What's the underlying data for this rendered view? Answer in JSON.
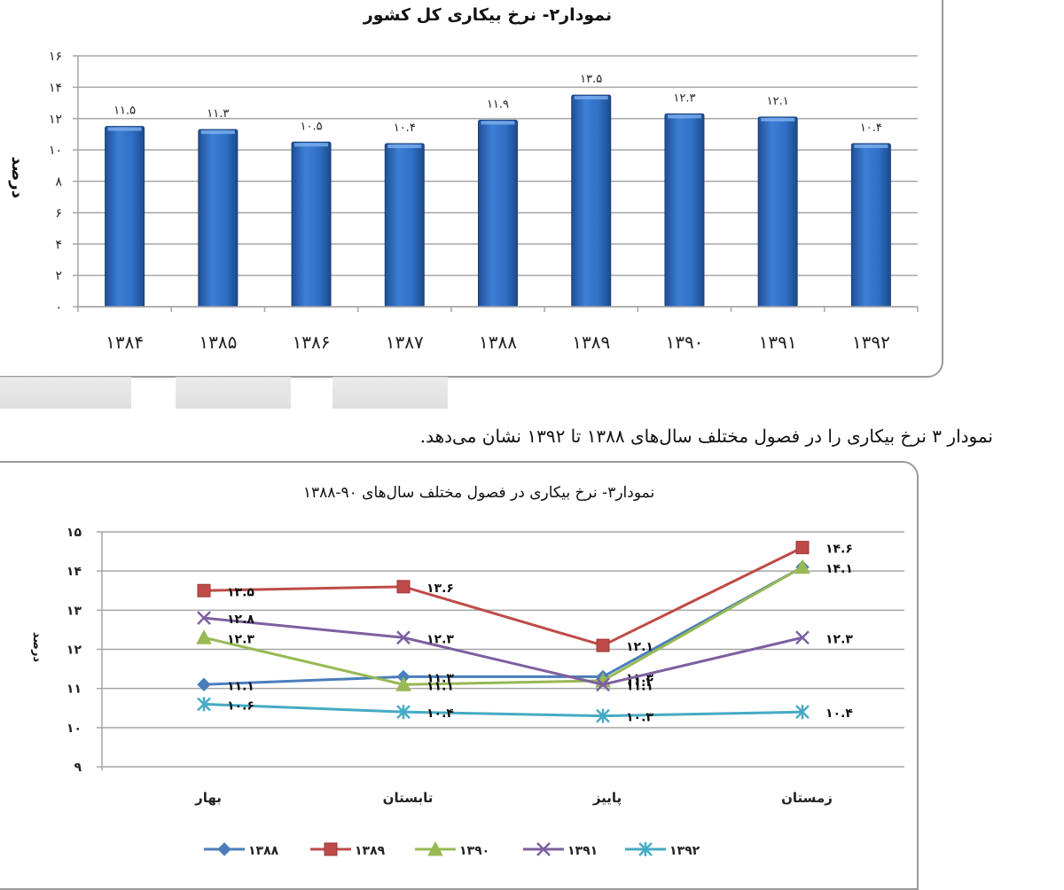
{
  "chart_data": [
    {
      "type": "bar",
      "title": "نمودار۲- نرخ بیکاری کل کشور",
      "xlabel": "",
      "ylabel": "درصد",
      "categories": [
        "۱۳۸۴",
        "۱۳۸۵",
        "۱۳۸۶",
        "۱۳۸۷",
        "۱۳۸۸",
        "۱۳۸۹",
        "۱۳۹۰",
        "۱۳۹۱",
        "۱۳۹۲"
      ],
      "values": [
        11.5,
        11.3,
        10.5,
        10.4,
        11.9,
        13.5,
        12.3,
        12.1,
        10.4
      ],
      "value_labels": [
        "۱۱.۵",
        "۱۱.۳",
        "۱۰.۵",
        "۱۰.۴",
        "۱۱.۹",
        "۱۳.۵",
        "۱۲.۳",
        "۱۲.۱",
        "۱۰.۴"
      ],
      "ylim": [
        0,
        16
      ],
      "yticks": [
        "۰",
        "۲",
        "۴",
        "۶",
        "۸",
        "۱۰",
        "۱۲",
        "۱۴",
        "۱۶"
      ],
      "grid": true,
      "bar_color": "#2f6fc4"
    },
    {
      "type": "line",
      "title": "نمودار۳- نرخ بیکاری در فصول مختلف سال‌های ۹۰-۱۳۸۸",
      "xlabel": "",
      "ylabel": "درصد",
      "categories": [
        "بهار",
        "تابستان",
        "پاییز",
        "زمستان"
      ],
      "ylim": [
        9,
        15
      ],
      "yticks": [
        "۹",
        "۱۰",
        "۱۱",
        "۱۲",
        "۱۳",
        "۱۴",
        "۱۵"
      ],
      "grid": true,
      "legend_position": "bottom",
      "series": [
        {
          "name": "۱۳۸۸",
          "marker": "diamond",
          "color": "#4a7ebb",
          "values": [
            11.1,
            11.3,
            11.3,
            14.1
          ],
          "labels": [
            "۱۱.۱",
            "۱۱.۳",
            "۱۱.۳",
            ""
          ]
        },
        {
          "name": "۱۳۸۹",
          "marker": "square",
          "color": "#be4b48",
          "values": [
            13.5,
            13.6,
            12.1,
            14.6
          ],
          "labels": [
            "۱۳.۵",
            "۱۳.۶",
            "۱۲.۱",
            "۱۴.۶"
          ]
        },
        {
          "name": "۱۳۹۰",
          "marker": "triangle",
          "color": "#98b954",
          "values": [
            12.3,
            11.1,
            11.2,
            14.1
          ],
          "labels": [
            "۱۲.۳",
            "۱۱.۱",
            "۱۱.۲",
            "۱۴.۱"
          ]
        },
        {
          "name": "۱۳۹۱",
          "marker": "x",
          "color": "#7d60a0",
          "values": [
            12.8,
            12.3,
            11.1,
            12.3
          ],
          "labels": [
            "۱۲.۸",
            "۱۲.۳",
            "۱۱.۱",
            "۱۲.۳"
          ]
        },
        {
          "name": "۱۳۹۲",
          "marker": "star",
          "color": "#46aac5",
          "values": [
            10.6,
            10.4,
            10.3,
            10.4
          ],
          "labels": [
            "۱۰.۶",
            "۱۰.۴",
            "۱۰.۳",
            "۱۰.۴"
          ]
        }
      ]
    }
  ],
  "text": {
    "caption": "نمودار ۳ نرخ بیکاری را در فصول مختلف سال‌های ۱۳۸۸ تا ۱۳۹۲ نشان می‌دهد."
  }
}
